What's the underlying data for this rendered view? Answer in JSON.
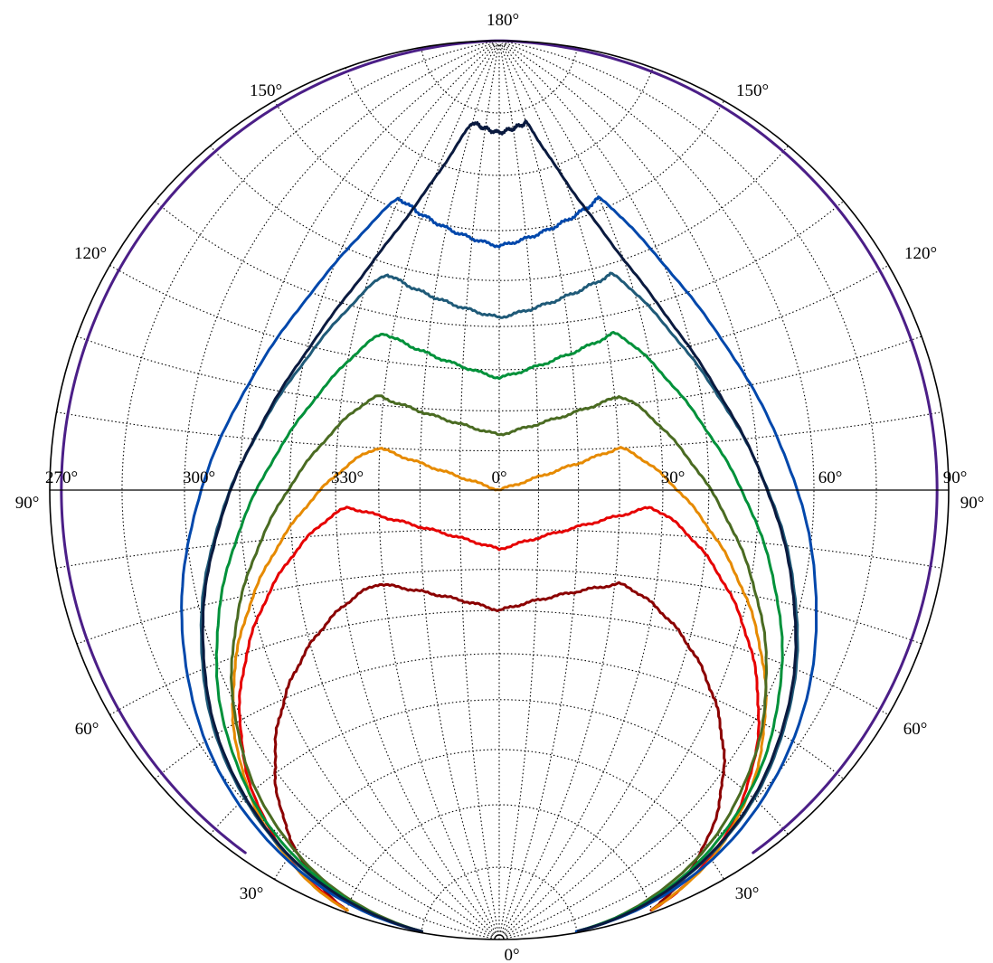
{
  "chart_data": {
    "type": "line",
    "title": "",
    "projection": "stereographic (equal-angle) polar plot, upper hemisphere",
    "grid": true,
    "gridStyle": "dotted",
    "tick_labels": {
      "top": "180°",
      "bottom": "0°",
      "equator_left": "270°",
      "equator_right": "90°",
      "equator": [
        "300°",
        "330°",
        "0°",
        "30°",
        "60°"
      ],
      "left_side": [
        "150°",
        "120°",
        "90°",
        "60°",
        "30°"
      ],
      "right_side": [
        "150°",
        "120°",
        "90°",
        "60°",
        "30°"
      ]
    },
    "series": [
      {
        "color": "#8b0000",
        "apex_deg": 60,
        "kinks": [
          [
            329,
            68
          ],
          [
            31,
            68
          ]
        ]
      },
      {
        "color": "#e60000",
        "apex_deg": 75,
        "kinks": [
          [
            323,
            86
          ],
          [
            35,
            86
          ]
        ]
      },
      {
        "color": "#e68a00",
        "apex_deg": 90,
        "kinks": [
          [
            330,
            100
          ],
          [
            30,
            100
          ]
        ]
      },
      {
        "color": "#4a6b22",
        "apex_deg": 104,
        "kinks": [
          [
            329,
            112
          ],
          [
            30,
            112
          ]
        ]
      },
      {
        "color": "#00913a",
        "apex_deg": 118,
        "kinks": [
          [
            328,
            126
          ],
          [
            29,
            126
          ]
        ]
      },
      {
        "color": "#1f5a78",
        "apex_deg": 132,
        "kinks": [
          [
            325,
            138
          ],
          [
            28,
            138
          ]
        ]
      },
      {
        "color": "#0047ab",
        "apex_deg": 147,
        "kinks": [
          [
            320,
            152
          ],
          [
            30,
            152
          ]
        ]
      },
      {
        "color": "#0a1a3f",
        "apex_deg": 167,
        "kinks": [
          [
            340,
            168
          ],
          [
            20,
            168
          ]
        ]
      },
      {
        "color": "#4b1e87",
        "apex_deg": 179.5,
        "kinks": []
      }
    ]
  }
}
